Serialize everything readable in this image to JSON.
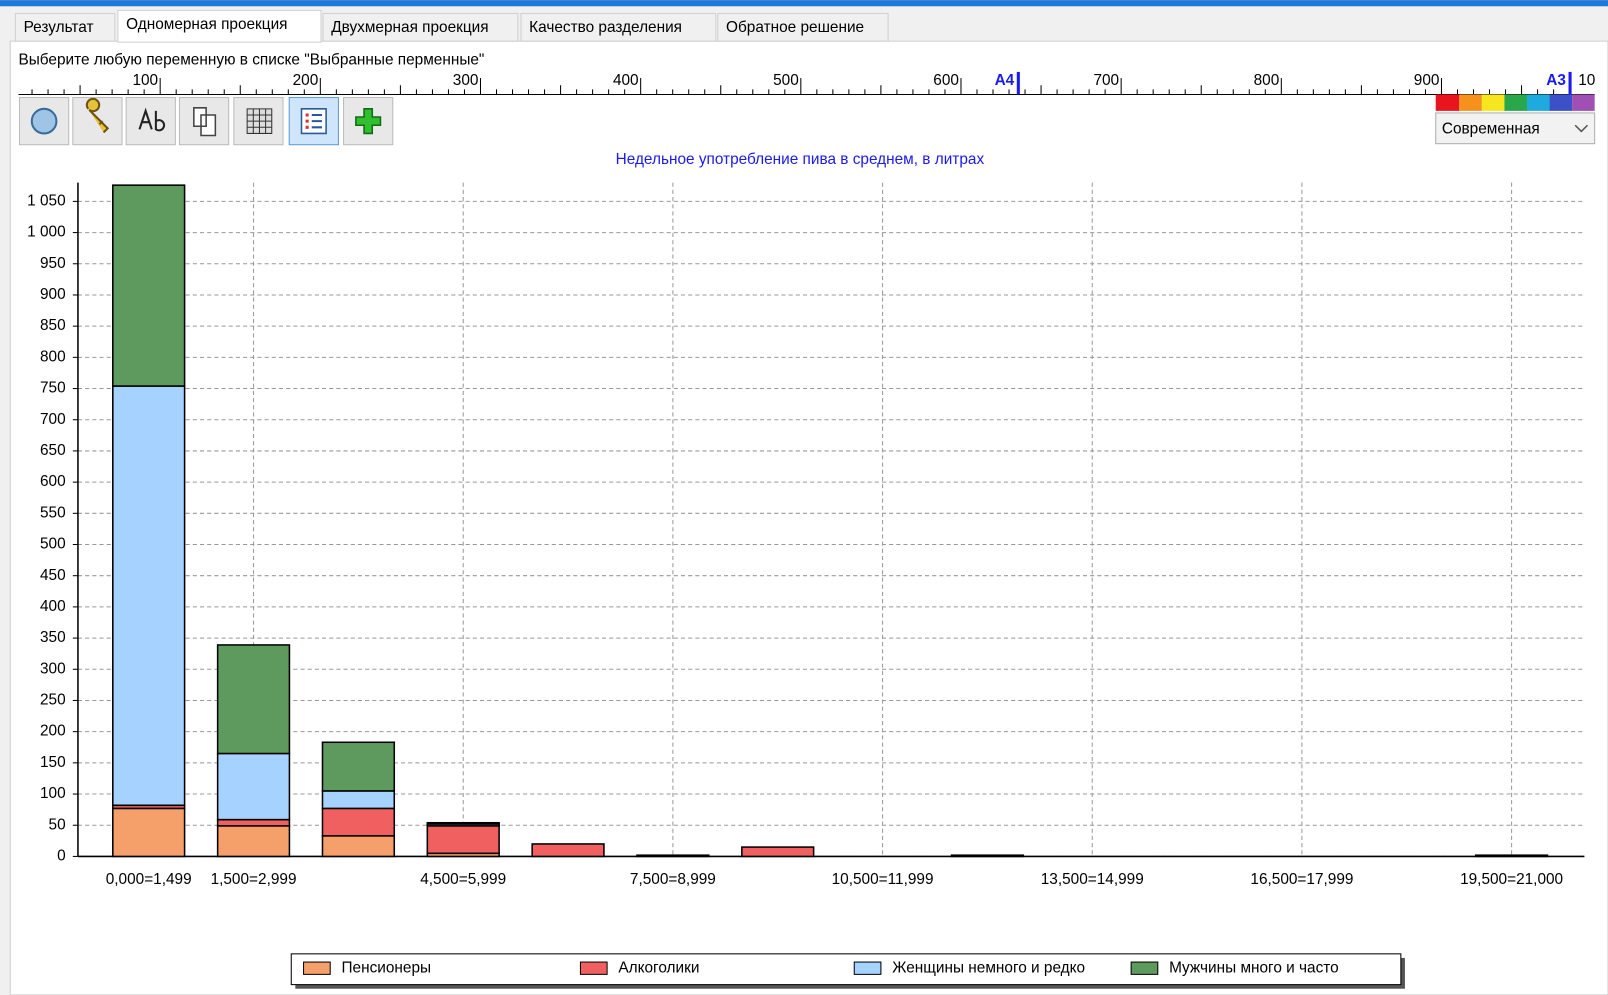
{
  "tabs": [
    "Результат",
    "Одномерная проекция",
    "Двухмерная проекция",
    "Качество разделения",
    "Обратное решение"
  ],
  "active_tab": 1,
  "instruction": "Выберите любую переменную в списке \"Выбранные перменные\"",
  "ruler": {
    "labels": [
      100,
      200,
      300,
      400,
      500,
      600,
      700,
      800,
      900
    ],
    "markers": [
      "A4",
      "A3"
    ],
    "end_label": "10"
  },
  "palette_dropdown": "Современная",
  "chart_data": {
    "type": "stacked_bar",
    "title": "Недельное употребление пива в среднем, в литрах",
    "categories": [
      "0,000=1,499",
      "1,500=2,999",
      null,
      "4,500=5,999",
      null,
      "7,500=8,999",
      null,
      "10,500=11,999",
      null,
      "13,500=14,999",
      null,
      "16,500=17,999",
      null,
      "19,500=21,000"
    ],
    "series": [
      {
        "name": "Пенсионеры",
        "color": "#f5a06a",
        "values": [
          77,
          49,
          33,
          5,
          0,
          0,
          0,
          0,
          0,
          0,
          0,
          0,
          0,
          0
        ]
      },
      {
        "name": "Алкоголики",
        "color": "#f06060",
        "values": [
          5,
          10,
          44,
          44,
          20,
          2,
          15,
          0,
          2,
          0,
          0,
          0,
          0,
          2
        ]
      },
      {
        "name": "Женщины немного и редко",
        "color": "#a6d2ff",
        "values": [
          672,
          106,
          28,
          3,
          0,
          0,
          0,
          0,
          0,
          0,
          0,
          0,
          0,
          0
        ]
      },
      {
        "name": "Мужчины много и часто",
        "color": "#5e9a5e",
        "values": [
          322,
          174,
          78,
          2,
          0,
          0,
          0,
          0,
          0,
          0,
          0,
          0,
          0,
          0
        ]
      }
    ],
    "ylim": [
      0,
      1080
    ],
    "yticks": [
      0,
      50,
      100,
      150,
      200,
      250,
      300,
      350,
      400,
      450,
      500,
      550,
      600,
      650,
      700,
      750,
      800,
      850,
      900,
      950,
      {
        "value": 1000,
        "label": "1 000"
      },
      {
        "value": 1050,
        "label": "1 050"
      }
    ],
    "grid": true,
    "legend": "bottom"
  }
}
